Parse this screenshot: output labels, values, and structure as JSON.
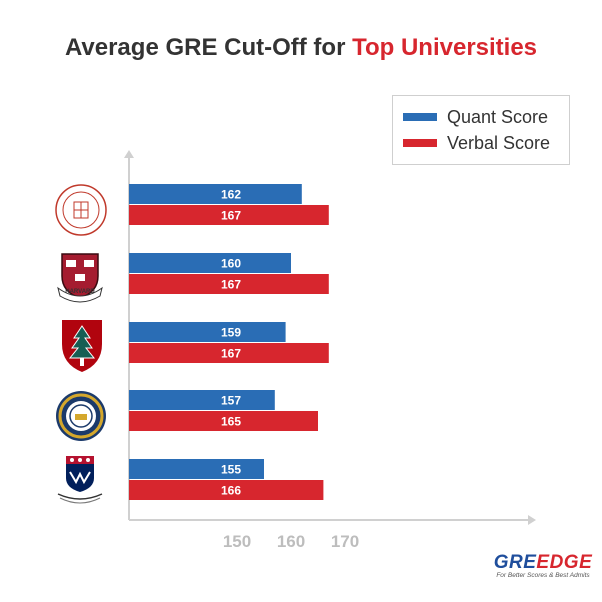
{
  "chart_data": {
    "type": "bar",
    "orientation": "horizontal",
    "title_parts": [
      "Average GRE Cut-Off for ",
      "Top Universities"
    ],
    "categories": [
      "",
      "",
      "",
      "",
      ""
    ],
    "series": [
      {
        "name": "Quant Score",
        "color": "#2a6db5",
        "values": [
          162,
          160,
          159,
          157,
          155
        ]
      },
      {
        "name": "Verbal Score",
        "color": "#d7262e",
        "values": [
          167,
          167,
          167,
          165,
          166
        ]
      }
    ],
    "xticks": [
      150,
      160,
      170
    ],
    "xlim": [
      130,
      180
    ],
    "legend_position": "top-right",
    "grid": false
  },
  "logos": [
    {
      "icon": "university-seal-icon",
      "color": "#c0392b"
    },
    {
      "icon": "harvard-shield-icon",
      "color": "#a51c30",
      "text": "HARVARD"
    },
    {
      "icon": "stanford-tree-icon",
      "color": "#b1040e"
    },
    {
      "icon": "berkeley-seal-icon",
      "color": "#1b3a6b"
    },
    {
      "icon": "penn-shield-icon",
      "color": "#011f5b"
    }
  ],
  "brand": {
    "name_part1": "GRE",
    "name_part2": "EDGE",
    "tagline": "For Better Scores & Best Admits"
  }
}
